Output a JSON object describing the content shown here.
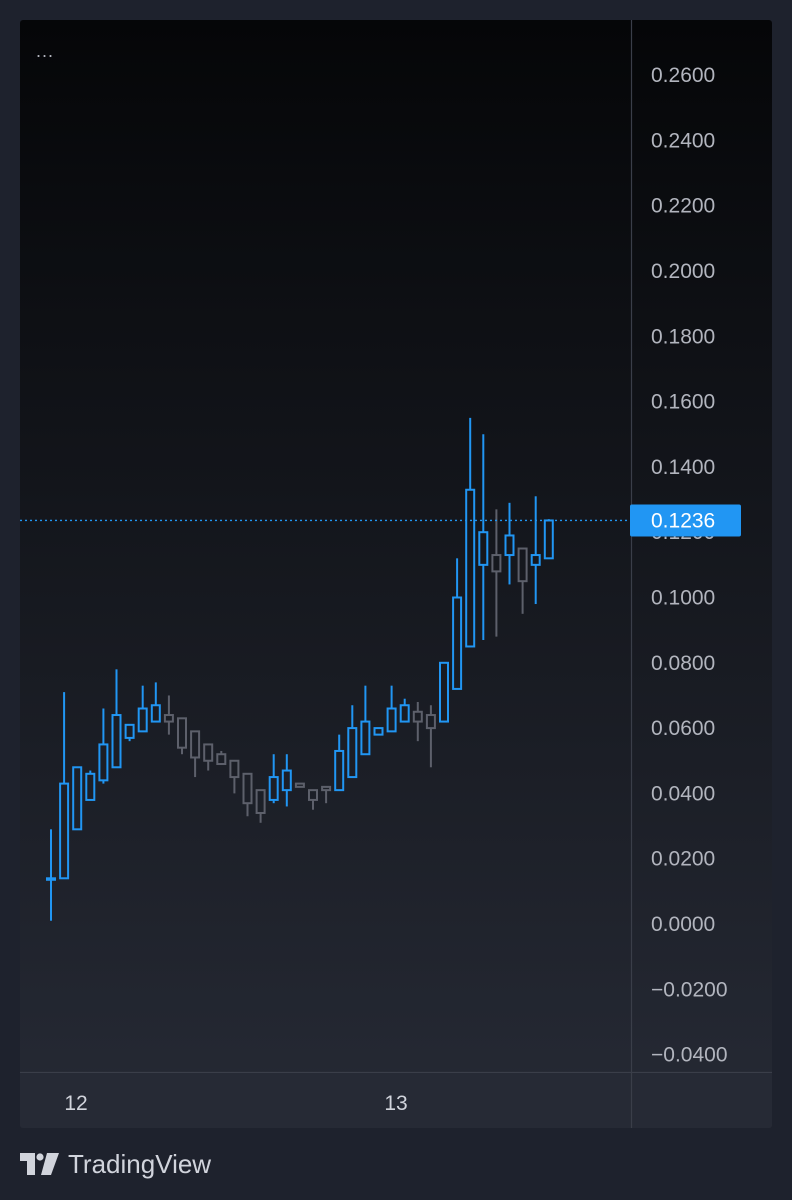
{
  "toolbar": {
    "more_label": "..."
  },
  "brand": {
    "name": "TradingView",
    "logo_icon": "tradingview-logo-icon"
  },
  "colors": {
    "up": "#2196f3",
    "down": "#5d606b",
    "price_line": "#2196f3",
    "label_bg": "#2196f3",
    "axis_text": "#b2b5be"
  },
  "chart_data": {
    "type": "candlestick",
    "ylim": [
      -0.05,
      0.27
    ],
    "y_ticks": [
      "0.2600",
      "0.2400",
      "0.2200",
      "0.2000",
      "0.1800",
      "0.1600",
      "0.1400",
      "0.1200",
      "0.1000",
      "0.0800",
      "0.0600",
      "0.0400",
      "0.0200",
      "0.0000",
      "−0.0200",
      "−0.0400"
    ],
    "x_ticks": [
      "12",
      "13"
    ],
    "last_price": "0.1236",
    "candles": [
      {
        "o": 0.014,
        "h": 0.029,
        "l": 0.001,
        "c": 0.014
      },
      {
        "o": 0.014,
        "h": 0.071,
        "l": 0.014,
        "c": 0.043
      },
      {
        "o": 0.029,
        "h": 0.048,
        "l": 0.029,
        "c": 0.048
      },
      {
        "o": 0.038,
        "h": 0.047,
        "l": 0.038,
        "c": 0.046
      },
      {
        "o": 0.044,
        "h": 0.066,
        "l": 0.043,
        "c": 0.055
      },
      {
        "o": 0.048,
        "h": 0.078,
        "l": 0.048,
        "c": 0.064
      },
      {
        "o": 0.057,
        "h": 0.061,
        "l": 0.056,
        "c": 0.061
      },
      {
        "o": 0.059,
        "h": 0.073,
        "l": 0.059,
        "c": 0.066
      },
      {
        "o": 0.062,
        "h": 0.074,
        "l": 0.062,
        "c": 0.067
      },
      {
        "o": 0.064,
        "h": 0.07,
        "l": 0.058,
        "c": 0.062
      },
      {
        "o": 0.063,
        "h": 0.063,
        "l": 0.052,
        "c": 0.054
      },
      {
        "o": 0.059,
        "h": 0.059,
        "l": 0.045,
        "c": 0.051
      },
      {
        "o": 0.055,
        "h": 0.055,
        "l": 0.047,
        "c": 0.05
      },
      {
        "o": 0.052,
        "h": 0.053,
        "l": 0.049,
        "c": 0.049
      },
      {
        "o": 0.05,
        "h": 0.05,
        "l": 0.04,
        "c": 0.045
      },
      {
        "o": 0.046,
        "h": 0.046,
        "l": 0.033,
        "c": 0.037
      },
      {
        "o": 0.041,
        "h": 0.041,
        "l": 0.031,
        "c": 0.034
      },
      {
        "o": 0.038,
        "h": 0.052,
        "l": 0.037,
        "c": 0.045
      },
      {
        "o": 0.041,
        "h": 0.052,
        "l": 0.036,
        "c": 0.047
      },
      {
        "o": 0.043,
        "h": 0.043,
        "l": 0.042,
        "c": 0.042
      },
      {
        "o": 0.041,
        "h": 0.041,
        "l": 0.035,
        "c": 0.038
      },
      {
        "o": 0.042,
        "h": 0.042,
        "l": 0.037,
        "c": 0.041
      },
      {
        "o": 0.041,
        "h": 0.058,
        "l": 0.041,
        "c": 0.053
      },
      {
        "o": 0.045,
        "h": 0.067,
        "l": 0.045,
        "c": 0.06
      },
      {
        "o": 0.052,
        "h": 0.073,
        "l": 0.052,
        "c": 0.062
      },
      {
        "o": 0.058,
        "h": 0.06,
        "l": 0.058,
        "c": 0.06
      },
      {
        "o": 0.059,
        "h": 0.073,
        "l": 0.059,
        "c": 0.066
      },
      {
        "o": 0.062,
        "h": 0.069,
        "l": 0.062,
        "c": 0.067
      },
      {
        "o": 0.065,
        "h": 0.068,
        "l": 0.056,
        "c": 0.062
      },
      {
        "o": 0.064,
        "h": 0.067,
        "l": 0.048,
        "c": 0.06
      },
      {
        "o": 0.062,
        "h": 0.08,
        "l": 0.062,
        "c": 0.08
      },
      {
        "o": 0.072,
        "h": 0.112,
        "l": 0.072,
        "c": 0.1
      },
      {
        "o": 0.085,
        "h": 0.155,
        "l": 0.085,
        "c": 0.133
      },
      {
        "o": 0.11,
        "h": 0.15,
        "l": 0.087,
        "c": 0.12
      },
      {
        "o": 0.113,
        "h": 0.127,
        "l": 0.088,
        "c": 0.108
      },
      {
        "o": 0.113,
        "h": 0.129,
        "l": 0.104,
        "c": 0.119
      },
      {
        "o": 0.115,
        "h": 0.115,
        "l": 0.095,
        "c": 0.105
      },
      {
        "o": 0.11,
        "h": 0.131,
        "l": 0.098,
        "c": 0.113
      },
      {
        "o": 0.112,
        "h": 0.124,
        "l": 0.112,
        "c": 0.1236
      }
    ]
  }
}
